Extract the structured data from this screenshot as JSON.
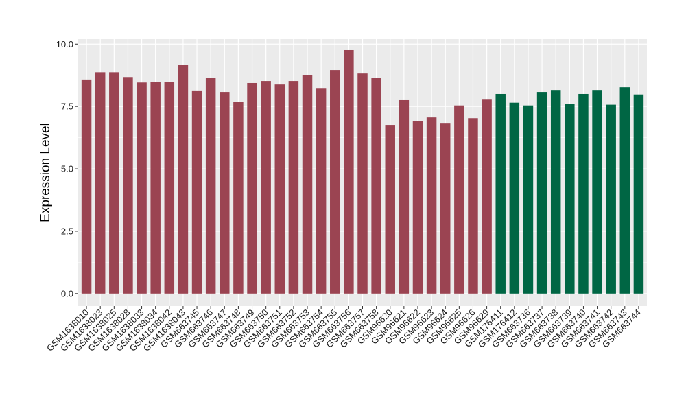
{
  "chart_data": {
    "type": "bar",
    "title": "",
    "xlabel": "",
    "ylabel": "Expression Level",
    "ylim": [
      -0.5,
      10.2
    ],
    "yticks": [
      0.0,
      2.5,
      5.0,
      7.5,
      10.0
    ],
    "ytick_labels": [
      "0.0",
      "2.5",
      "5.0",
      "7.5",
      "10.0"
    ],
    "grid": true,
    "legend": "none",
    "panel_color": "#ebebeb",
    "grid_color": "#ffffff",
    "series": [
      {
        "color": "#9b4452",
        "categories": [
          "GSM1638010",
          "GSM1638023",
          "GSM1638025",
          "GSM1638028",
          "GSM1638033",
          "GSM1638034",
          "GSM1638042",
          "GSM1638043",
          "GSM663745",
          "GSM663746",
          "GSM663747",
          "GSM663748",
          "GSM663749",
          "GSM663750",
          "GSM663751",
          "GSM663752",
          "GSM663753",
          "GSM663754",
          "GSM663755",
          "GSM663756",
          "GSM663757",
          "GSM663758",
          "GSM96620",
          "GSM96621",
          "GSM96622",
          "GSM96623",
          "GSM96624",
          "GSM96625",
          "GSM96626",
          "GSM96629"
        ],
        "values": [
          8.58,
          8.87,
          8.87,
          8.68,
          8.46,
          8.48,
          8.48,
          9.18,
          8.14,
          8.65,
          8.08,
          7.67,
          8.44,
          8.52,
          8.38,
          8.52,
          8.76,
          8.24,
          8.96,
          9.76,
          8.82,
          8.65,
          6.76,
          7.78,
          6.9,
          7.06,
          6.84,
          7.54,
          7.03,
          7.8
        ]
      },
      {
        "color": "#006644",
        "categories": [
          "GSM176411",
          "GSM176412",
          "GSM663736",
          "GSM663737",
          "GSM663738",
          "GSM663739",
          "GSM663740",
          "GSM663741",
          "GSM663742",
          "GSM663743",
          "GSM663744"
        ],
        "values": [
          8.0,
          7.65,
          7.54,
          8.08,
          8.16,
          7.6,
          8.0,
          8.16,
          7.57,
          8.27,
          7.98
        ]
      }
    ]
  }
}
